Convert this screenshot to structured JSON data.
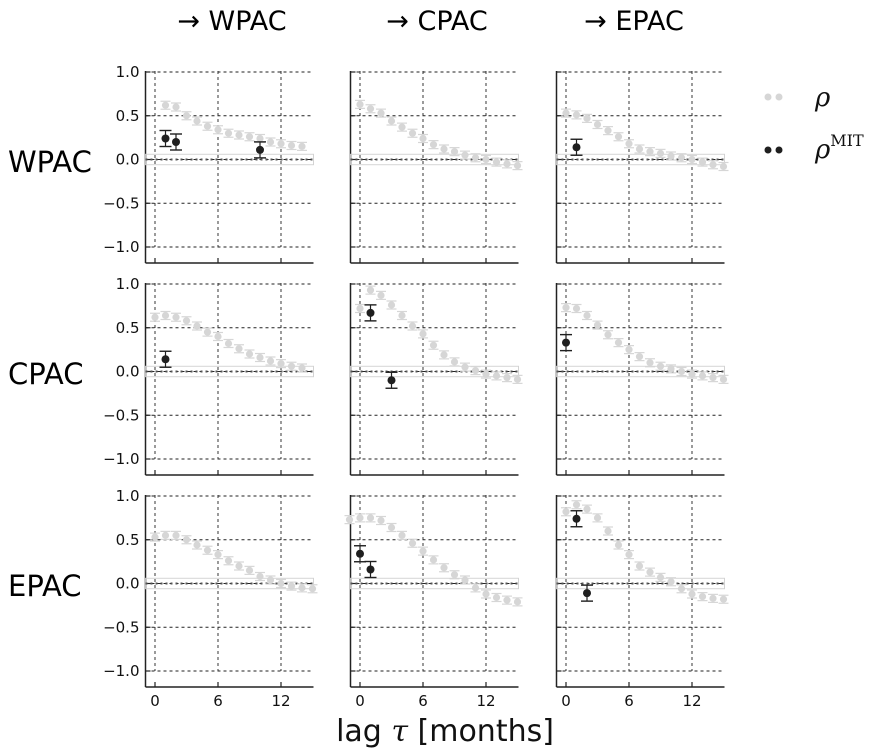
{
  "colors": {
    "rho": "#d6d6d6",
    "mit": "#1f1f1f",
    "grid": "#222222"
  },
  "col_prefix": "→ ",
  "columns": [
    "WPAC",
    "CPAC",
    "EPAC"
  ],
  "rows": [
    "WPAC",
    "CPAC",
    "EPAC"
  ],
  "xlabel_pre": "lag ",
  "xlabel_var": "τ",
  "xlabel_post": " [months]",
  "legend": {
    "rho": "ρ",
    "mit_base": "ρ",
    "mit_sup": "MIT"
  },
  "chart_data": {
    "type": "scatter",
    "xlim": [
      -1,
      15
    ],
    "ylim": [
      -1.05,
      1.05
    ],
    "xticks": [
      0,
      6,
      12
    ],
    "yticks": [
      -1.0,
      -0.5,
      0.0,
      0.5,
      1.0
    ],
    "ytick_labels": [
      "−1.0",
      "−0.5",
      "0.0",
      "0.5",
      "1.0"
    ],
    "grid": true,
    "legend_position": "top-right outside",
    "panels": [
      {
        "row": "WPAC",
        "col": "WPAC",
        "rho": [
          [
            1,
            0.62
          ],
          [
            2,
            0.6
          ],
          [
            3,
            0.5
          ],
          [
            4,
            0.44
          ],
          [
            5,
            0.38
          ],
          [
            6,
            0.34
          ],
          [
            7,
            0.3
          ],
          [
            8,
            0.28
          ],
          [
            9,
            0.26
          ],
          [
            10,
            0.24
          ],
          [
            11,
            0.2
          ],
          [
            12,
            0.18
          ],
          [
            13,
            0.16
          ],
          [
            14,
            0.15
          ]
        ],
        "mit": [
          [
            1,
            0.24
          ],
          [
            2,
            0.2
          ],
          [
            10,
            0.11
          ]
        ]
      },
      {
        "row": "WPAC",
        "col": "CPAC",
        "rho": [
          [
            0,
            0.63
          ],
          [
            1,
            0.58
          ],
          [
            2,
            0.53
          ],
          [
            3,
            0.44
          ],
          [
            4,
            0.37
          ],
          [
            5,
            0.3
          ],
          [
            6,
            0.24
          ],
          [
            7,
            0.17
          ],
          [
            8,
            0.12
          ],
          [
            9,
            0.09
          ],
          [
            10,
            0.05
          ],
          [
            11,
            0.02
          ],
          [
            12,
            0.0
          ],
          [
            13,
            -0.03
          ],
          [
            14,
            -0.05
          ],
          [
            15,
            -0.07
          ]
        ],
        "mit": []
      },
      {
        "row": "WPAC",
        "col": "EPAC",
        "rho": [
          [
            0,
            0.53
          ],
          [
            1,
            0.51
          ],
          [
            2,
            0.47
          ],
          [
            3,
            0.4
          ],
          [
            4,
            0.33
          ],
          [
            5,
            0.26
          ],
          [
            6,
            0.18
          ],
          [
            7,
            0.12
          ],
          [
            8,
            0.09
          ],
          [
            9,
            0.07
          ],
          [
            10,
            0.04
          ],
          [
            11,
            0.02
          ],
          [
            12,
            0.0
          ],
          [
            13,
            -0.03
          ],
          [
            14,
            -0.06
          ],
          [
            15,
            -0.08
          ]
        ],
        "mit": [
          [
            1,
            0.14
          ]
        ]
      },
      {
        "row": "CPAC",
        "col": "WPAC",
        "rho": [
          [
            0,
            0.62
          ],
          [
            1,
            0.64
          ],
          [
            2,
            0.62
          ],
          [
            3,
            0.58
          ],
          [
            4,
            0.52
          ],
          [
            5,
            0.45
          ],
          [
            6,
            0.4
          ],
          [
            7,
            0.32
          ],
          [
            8,
            0.26
          ],
          [
            9,
            0.2
          ],
          [
            10,
            0.16
          ],
          [
            11,
            0.12
          ],
          [
            12,
            0.09
          ],
          [
            13,
            0.06
          ],
          [
            14,
            0.04
          ]
        ],
        "mit": [
          [
            1,
            0.14
          ]
        ]
      },
      {
        "row": "CPAC",
        "col": "CPAC",
        "rho": [
          [
            0,
            0.72
          ],
          [
            1,
            0.93
          ],
          [
            2,
            0.87
          ],
          [
            3,
            0.76
          ],
          [
            4,
            0.64
          ],
          [
            5,
            0.52
          ],
          [
            6,
            0.43
          ],
          [
            7,
            0.3
          ],
          [
            8,
            0.19
          ],
          [
            9,
            0.11
          ],
          [
            10,
            0.05
          ],
          [
            11,
            0.01
          ],
          [
            12,
            -0.03
          ],
          [
            13,
            -0.05
          ],
          [
            14,
            -0.07
          ],
          [
            15,
            -0.09
          ]
        ],
        "mit": [
          [
            1,
            0.67
          ],
          [
            3,
            -0.1
          ]
        ]
      },
      {
        "row": "CPAC",
        "col": "EPAC",
        "rho": [
          [
            0,
            0.73
          ],
          [
            1,
            0.72
          ],
          [
            2,
            0.64
          ],
          [
            3,
            0.53
          ],
          [
            4,
            0.42
          ],
          [
            5,
            0.33
          ],
          [
            6,
            0.25
          ],
          [
            7,
            0.17
          ],
          [
            8,
            0.1
          ],
          [
            9,
            0.06
          ],
          [
            10,
            0.03
          ],
          [
            11,
            0.0
          ],
          [
            12,
            -0.03
          ],
          [
            13,
            -0.05
          ],
          [
            14,
            -0.07
          ],
          [
            15,
            -0.09
          ]
        ],
        "mit": [
          [
            0,
            0.33
          ]
        ]
      },
      {
        "row": "EPAC",
        "col": "WPAC",
        "rho": [
          [
            0,
            0.53
          ],
          [
            1,
            0.55
          ],
          [
            2,
            0.55
          ],
          [
            3,
            0.5
          ],
          [
            4,
            0.44
          ],
          [
            5,
            0.38
          ],
          [
            6,
            0.33
          ],
          [
            7,
            0.26
          ],
          [
            8,
            0.2
          ],
          [
            9,
            0.15
          ],
          [
            10,
            0.08
          ],
          [
            11,
            0.04
          ],
          [
            12,
            0.0
          ],
          [
            13,
            -0.03
          ],
          [
            14,
            -0.05
          ],
          [
            15,
            -0.06
          ]
        ],
        "mit": []
      },
      {
        "row": "EPAC",
        "col": "CPAC",
        "rho": [
          [
            -1,
            0.73
          ],
          [
            0,
            0.75
          ],
          [
            1,
            0.75
          ],
          [
            2,
            0.72
          ],
          [
            3,
            0.64
          ],
          [
            4,
            0.55
          ],
          [
            5,
            0.46
          ],
          [
            6,
            0.37
          ],
          [
            7,
            0.27
          ],
          [
            8,
            0.18
          ],
          [
            9,
            0.1
          ],
          [
            10,
            0.04
          ],
          [
            11,
            -0.05
          ],
          [
            12,
            -0.12
          ],
          [
            13,
            -0.16
          ],
          [
            14,
            -0.19
          ],
          [
            15,
            -0.21
          ]
        ],
        "mit": [
          [
            0,
            0.34
          ],
          [
            1,
            0.16
          ]
        ]
      },
      {
        "row": "EPAC",
        "col": "EPAC",
        "rho": [
          [
            0,
            0.82
          ],
          [
            1,
            0.9
          ],
          [
            2,
            0.85
          ],
          [
            3,
            0.75
          ],
          [
            4,
            0.6
          ],
          [
            5,
            0.44
          ],
          [
            6,
            0.33
          ],
          [
            7,
            0.2
          ],
          [
            8,
            0.13
          ],
          [
            9,
            0.07
          ],
          [
            10,
            0.02
          ],
          [
            11,
            -0.06
          ],
          [
            12,
            -0.12
          ],
          [
            13,
            -0.15
          ],
          [
            14,
            -0.17
          ],
          [
            15,
            -0.18
          ]
        ],
        "mit": [
          [
            1,
            0.74
          ],
          [
            2,
            -0.11
          ]
        ]
      }
    ]
  }
}
